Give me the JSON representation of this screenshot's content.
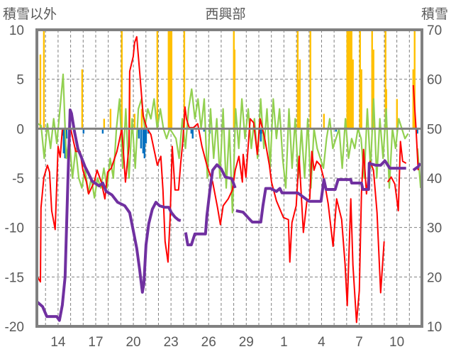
{
  "chart_data": {
    "type": "line",
    "title": "西興部",
    "ylabel_left": "積雪以外",
    "ylabel_right": "積雪",
    "x_unit": "days from tick '14'",
    "xlim": [
      -1.69,
      29.0
    ],
    "ylim_left": [
      -20,
      10
    ],
    "ylim_right": [
      10,
      70
    ],
    "yticks_left": [
      10,
      5,
      0,
      -5,
      -10,
      -15,
      -20
    ],
    "yticks_right": [
      70,
      60,
      50,
      40,
      30,
      20,
      10
    ],
    "xticks": [
      {
        "t": 0,
        "label": "14"
      },
      {
        "t": 3,
        "label": "17"
      },
      {
        "t": 6,
        "label": "20"
      },
      {
        "t": 9,
        "label": "23"
      },
      {
        "t": 12,
        "label": "26"
      },
      {
        "t": 15,
        "label": "29"
      },
      {
        "t": 18,
        "label": "1"
      },
      {
        "t": 21,
        "label": "4"
      },
      {
        "t": 24,
        "label": "7"
      },
      {
        "t": 27,
        "label": "10"
      }
    ],
    "grid": true,
    "colors": {
      "red": "#ff0000",
      "green": "#92d050",
      "purple": "#7030a0",
      "yellow": "#ffc000",
      "blue": "#0070c0",
      "axis": "#808080"
    },
    "series": [
      {
        "name": "yellow-bars",
        "axis": "left",
        "kind": "bar",
        "points": [
          [
            -1.41,
            7.5
          ],
          [
            -1.13,
            10
          ],
          [
            1.92,
            6
          ],
          [
            3.67,
            1
          ],
          [
            4.18,
            2
          ],
          [
            5.08,
            10
          ],
          [
            5.71,
            5
          ],
          [
            6.1,
            1.5
          ],
          [
            6.67,
            2
          ],
          [
            7.91,
            10
          ],
          [
            8.81,
            10
          ],
          [
            8.93,
            10
          ],
          [
            9.04,
            10
          ],
          [
            10.06,
            10
          ],
          [
            14.01,
            10
          ],
          [
            14.07,
            8
          ],
          [
            19.1,
            10
          ],
          [
            19.21,
            5
          ],
          [
            19.27,
            7
          ],
          [
            20.11,
            10
          ],
          [
            21.19,
            1.5
          ],
          [
            23.05,
            10
          ],
          [
            23.16,
            10
          ],
          [
            23.28,
            10
          ],
          [
            23.39,
            10
          ],
          [
            23.5,
            7
          ],
          [
            24.07,
            10
          ],
          [
            24.18,
            6
          ],
          [
            25.03,
            10
          ],
          [
            25.14,
            8
          ],
          [
            26.1,
            10
          ],
          [
            26.16,
            4
          ],
          [
            27.01,
            3
          ],
          [
            28.31,
            6
          ],
          [
            28.42,
            10
          ]
        ]
      },
      {
        "name": "blue-bars",
        "axis": "left",
        "kind": "bar",
        "points": [
          [
            0.4,
            -0.7
          ],
          [
            0.45,
            -2.5
          ],
          [
            0.56,
            -3
          ],
          [
            0.68,
            -1
          ],
          [
            2.03,
            -0.5
          ],
          [
            3.56,
            -0.5
          ],
          [
            5.08,
            -0.6
          ],
          [
            5.88,
            -0.5
          ],
          [
            6.44,
            -1
          ],
          [
            6.61,
            -2
          ],
          [
            6.78,
            -2.5
          ],
          [
            6.89,
            -3
          ],
          [
            7.01,
            -1.5
          ],
          [
            7.18,
            -0.5
          ],
          [
            10.62,
            -0.5
          ],
          [
            10.73,
            -1
          ],
          [
            11.64,
            -0.3
          ],
          [
            12.09,
            -0.5
          ],
          [
            16.05,
            -0.5
          ],
          [
            16.16,
            -1.3
          ],
          [
            16.27,
            -0.5
          ],
          [
            17.01,
            -0.3
          ],
          [
            22.15,
            -0.3
          ],
          [
            28.64,
            -0.5
          ]
        ]
      },
      {
        "name": "green-line",
        "axis": "left",
        "kind": "line",
        "t0": -1.6,
        "dt": 0.25,
        "values": [
          0.5,
          0.3,
          -3,
          0.5,
          -2,
          1,
          -1.5,
          2,
          5.5,
          -3,
          -1,
          -5,
          -2,
          -5,
          -6,
          -4,
          -6.5,
          -5,
          -7,
          -5,
          -6,
          -4,
          -6,
          -3,
          -5,
          0,
          3,
          -4,
          2,
          -5,
          1,
          -4,
          2,
          3,
          0,
          2,
          1,
          3,
          0,
          2,
          0,
          -1,
          0,
          -0.5,
          -1,
          -3,
          1,
          -2,
          2,
          4,
          1,
          3,
          0,
          3,
          -5,
          2,
          -3,
          1,
          -5,
          2,
          -6,
          0,
          -8.5,
          2,
          -2,
          3,
          -1,
          2,
          -2,
          1,
          -3,
          3,
          -2,
          2,
          -4,
          3,
          -1,
          2,
          -3,
          -6,
          2,
          -4,
          1,
          -5,
          0,
          -5,
          1,
          -6,
          0,
          -2,
          -3,
          -4,
          -1,
          1,
          -2,
          -1,
          0,
          -4,
          1,
          -3,
          -1,
          -2,
          0,
          -1,
          -5,
          2,
          -4,
          3,
          -5,
          1,
          -3,
          2,
          -6,
          0,
          -2,
          1,
          0,
          -1,
          -0.5,
          null,
          null,
          -2,
          -6
        ]
      },
      {
        "name": "red-line",
        "axis": "left",
        "kind": "line",
        "points": [
          [
            -1.64,
            -15.0
          ],
          [
            -1.41,
            -15.5
          ],
          [
            -1.36,
            -8.0
          ],
          [
            -1.13,
            -4.9
          ],
          [
            -0.85,
            -3.7
          ],
          [
            -0.68,
            -4.4
          ],
          [
            -0.51,
            -8.3
          ],
          [
            -0.23,
            -10.2
          ],
          [
            0,
            -1.8
          ],
          [
            0.17,
            -2.9
          ],
          [
            0.34,
            -0.1
          ],
          [
            0.56,
            0
          ],
          [
            1.02,
            -0.1
          ],
          [
            1.41,
            -2.3
          ],
          [
            1.75,
            -2.3
          ],
          [
            1.98,
            -4.2
          ],
          [
            2.26,
            -5.4
          ],
          [
            2.43,
            -6.6
          ],
          [
            2.88,
            -5.4
          ],
          [
            3.11,
            -4.2
          ],
          [
            3.45,
            -5.4
          ],
          [
            3.73,
            -7.1
          ],
          [
            3.95,
            -4.4
          ],
          [
            4.24,
            -4.0
          ],
          [
            4.69,
            -2.3
          ],
          [
            5.08,
            0
          ],
          [
            5.37,
            -5.4
          ],
          [
            5.65,
            -1.8
          ],
          [
            5.71,
            5.8
          ],
          [
            5.99,
            7.3
          ],
          [
            6.1,
            8.7
          ],
          [
            6.27,
            9.3
          ],
          [
            6.5,
            5.8
          ],
          [
            6.78,
            1.3
          ],
          [
            7.06,
            0.1
          ],
          [
            7.4,
            -0.6
          ],
          [
            7.91,
            -3.7
          ],
          [
            8.19,
            -2.8
          ],
          [
            8.36,
            -6.2
          ],
          [
            8.53,
            -11.4
          ],
          [
            8.76,
            -13.5
          ],
          [
            8.93,
            -9.0
          ],
          [
            9.1,
            -1.8
          ],
          [
            9.32,
            -6.2
          ],
          [
            9.6,
            -6.2
          ],
          [
            9.77,
            -3.5
          ],
          [
            9.94,
            -1.3
          ],
          [
            10.11,
            2.2
          ],
          [
            10.23,
            1.0
          ],
          [
            10.45,
            0.1
          ],
          [
            10.79,
            0.1
          ],
          [
            11.13,
            0.5
          ],
          [
            11.47,
            -1.8
          ],
          [
            11.86,
            -3.7
          ],
          [
            12.32,
            -5.4
          ],
          [
            12.71,
            -8.0
          ],
          [
            12.94,
            -9.7
          ],
          [
            13.16,
            -7.8
          ],
          [
            13.56,
            -7.1
          ],
          [
            13.9,
            -6.2
          ],
          [
            14.12,
            -4.2
          ],
          [
            14.41,
            -2.8
          ],
          [
            14.69,
            -5.4
          ],
          [
            14.75,
            -2.6
          ],
          [
            14.97,
            -4.9
          ],
          [
            15.31,
            1.0
          ],
          [
            15.59,
            0.6
          ],
          [
            15.88,
            -2.6
          ],
          [
            16.1,
            1.0
          ],
          [
            16.44,
            -0.8
          ],
          [
            16.84,
            -3.7
          ],
          [
            17.01,
            -5.4
          ],
          [
            17.4,
            -7.3
          ],
          [
            17.8,
            -8.5
          ],
          [
            17.97,
            -9.0
          ],
          [
            18.36,
            -9.2
          ],
          [
            18.47,
            -13.5
          ],
          [
            18.64,
            -9.5
          ],
          [
            18.98,
            -7.8
          ],
          [
            19.21,
            -2.8
          ],
          [
            19.55,
            -10.5
          ],
          [
            19.83,
            -7.3
          ],
          [
            20.06,
            -7.1
          ],
          [
            20.23,
            -2.3
          ],
          [
            20.4,
            -4.2
          ],
          [
            20.62,
            -3.3
          ],
          [
            20.9,
            -3.7
          ],
          [
            21.19,
            -5.1
          ],
          [
            21.53,
            -7.6
          ],
          [
            21.92,
            -11.9
          ],
          [
            22.2,
            -7.1
          ],
          [
            22.6,
            -9.2
          ],
          [
            22.88,
            -13.8
          ],
          [
            23.05,
            -17.9
          ],
          [
            23.33,
            -7.1
          ],
          [
            23.5,
            -13.8
          ],
          [
            23.79,
            -19.6
          ],
          [
            24.01,
            -16.4
          ],
          [
            24.18,
            -6.6
          ],
          [
            24.35,
            -2.1
          ],
          [
            24.58,
            -6.6
          ],
          [
            24.86,
            -3.3
          ],
          [
            25.14,
            -4.2
          ],
          [
            25.42,
            -8.5
          ],
          [
            25.71,
            -16.6
          ],
          [
            25.99,
            -11.4
          ],
          null,
          [
            26.27,
            -5.4
          ],
          [
            26.55,
            -4.9
          ],
          [
            26.84,
            -5.6
          ],
          [
            27.12,
            -8.3
          ],
          [
            27.29,
            -1.3
          ],
          [
            27.46,
            -3.3
          ],
          [
            27.74,
            -3.5
          ],
          null,
          [
            28.31,
            4.4
          ],
          [
            28.53,
            0.0
          ],
          [
            28.7,
            -4.2
          ]
        ]
      },
      {
        "name": "purple-snow-depth",
        "axis": "right",
        "kind": "line",
        "points": [
          [
            -1.69,
            15.0
          ],
          [
            -1.24,
            14.0
          ],
          [
            -0.9,
            12.0
          ],
          [
            -0.11,
            12.0
          ],
          [
            0.11,
            11.2
          ],
          [
            0.34,
            14.3
          ],
          [
            0.56,
            20.0
          ],
          [
            0.79,
            40.2
          ],
          [
            0.96,
            53.8
          ],
          [
            1.07,
            53.1
          ],
          [
            1.3,
            49.5
          ],
          [
            1.58,
            45.9
          ],
          [
            1.92,
            43.8
          ],
          [
            2.15,
            42.3
          ],
          [
            2.43,
            40.9
          ],
          [
            2.71,
            39.4
          ],
          [
            3.28,
            38.4
          ],
          [
            3.56,
            39.0
          ],
          [
            3.84,
            37.3
          ],
          [
            4.29,
            36.6
          ],
          [
            4.75,
            35.1
          ],
          [
            5.31,
            34.4
          ],
          [
            5.71,
            33.0
          ],
          [
            5.99,
            29.4
          ],
          [
            6.27,
            25.8
          ],
          [
            6.5,
            21.5
          ],
          [
            6.72,
            16.9
          ],
          [
            6.84,
            18.6
          ],
          [
            7.01,
            26.5
          ],
          [
            7.23,
            30.8
          ],
          [
            7.51,
            33.7
          ],
          [
            7.8,
            35.1
          ],
          [
            8.08,
            34.4
          ],
          [
            8.47,
            34.1
          ],
          [
            8.81,
            34.1
          ],
          [
            9.04,
            33.0
          ],
          [
            9.32,
            32.1
          ],
          [
            9.6,
            31.5
          ],
          [
            9.77,
            31.4
          ],
          null,
          [
            10.17,
            29.0
          ],
          [
            10.34,
            26.5
          ],
          [
            10.62,
            26.5
          ],
          [
            10.9,
            28.7
          ],
          [
            11.3,
            28.7
          ],
          [
            11.75,
            28.7
          ],
          [
            11.86,
            32.3
          ],
          [
            12.09,
            37.3
          ],
          [
            12.32,
            41.6
          ],
          [
            12.66,
            42.7
          ],
          [
            13.0,
            41.9
          ],
          [
            13.33,
            40.2
          ],
          [
            13.84,
            39.9
          ],
          [
            14.12,
            38.0
          ],
          null,
          [
            14.18,
            33.4
          ],
          [
            14.75,
            33.1
          ],
          [
            15.14,
            32.0
          ],
          [
            15.48,
            31.1
          ],
          [
            16.16,
            31.1
          ],
          [
            16.33,
            34.4
          ],
          [
            16.55,
            37.9
          ],
          [
            16.95,
            37.9
          ],
          [
            17.4,
            37.3
          ],
          [
            17.68,
            37.9
          ],
          [
            17.85,
            37.0
          ],
          [
            18.53,
            37.0
          ],
          [
            19.1,
            37.0
          ],
          [
            20.0,
            35.3
          ],
          [
            20.96,
            35.3
          ],
          [
            21.19,
            39.7
          ],
          [
            21.36,
            37.7
          ],
          [
            22.09,
            37.7
          ],
          [
            22.32,
            39.7
          ],
          [
            23.33,
            39.7
          ],
          [
            23.4,
            39.0
          ],
          [
            24.18,
            39.0
          ],
          [
            24.29,
            37.7
          ],
          [
            24.75,
            37.7
          ],
          [
            24.8,
            43.0
          ],
          [
            25.31,
            42.6
          ],
          [
            25.71,
            42.6
          ],
          [
            26.05,
            43.5
          ],
          [
            26.44,
            42.0
          ],
          [
            27.74,
            42.0
          ],
          null,
          [
            28.31,
            41.6
          ],
          [
            28.7,
            42.3
          ],
          [
            28.87,
            43.0
          ]
        ]
      }
    ]
  }
}
